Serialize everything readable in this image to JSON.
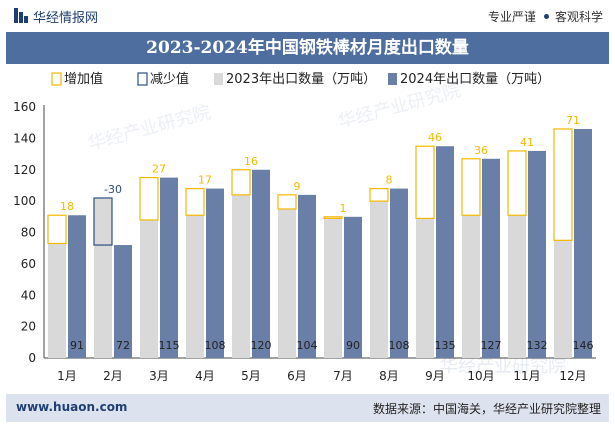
{
  "header": {
    "site_name": "华经情报网",
    "tag1": "专业严谨",
    "tag2": "客观科学"
  },
  "title": "2023-2024年中国钢铁棒材月度出口数量",
  "footer": {
    "url": "www.huaon.com",
    "source": "数据来源：中国海关，华经产业研究院整理"
  },
  "watermark": "华经产业研究院",
  "colors": {
    "increase": "#f5b800",
    "decrease": "#2d4f7f",
    "y2023": "#d9d9d9",
    "y2024": "#6a7fa8",
    "title_bg": "#4e6ea0"
  },
  "chart_data": {
    "type": "bar",
    "categories": [
      "1月",
      "2月",
      "3月",
      "4月",
      "5月",
      "6月",
      "7月",
      "8月",
      "9月",
      "10月",
      "11月",
      "12月"
    ],
    "series": [
      {
        "name": "2023年出口数量（万吨）",
        "values": [
          73,
          102,
          88,
          91,
          104,
          95,
          89,
          100,
          89,
          91,
          91,
          75
        ]
      },
      {
        "name": "2024年出口数量（万吨）",
        "values": [
          91,
          72,
          115,
          108,
          120,
          104,
          90,
          108,
          135,
          127,
          132,
          146
        ]
      }
    ],
    "change": {
      "increase_name": "增加值",
      "decrease_name": "减少值",
      "labels": [
        "18",
        "-30",
        "27",
        "17",
        "16",
        "9",
        "1",
        "8",
        "46",
        "36",
        "41",
        "71"
      ]
    },
    "value_labels": [
      "91",
      "72",
      "115",
      "108",
      "120",
      "104",
      "90",
      "108",
      "135",
      "127",
      "132",
      "146"
    ],
    "yticks": [
      "0",
      "20",
      "40",
      "60",
      "80",
      "100",
      "120",
      "140",
      "160"
    ],
    "ylim": [
      0,
      160
    ],
    "legend_position": "top"
  }
}
